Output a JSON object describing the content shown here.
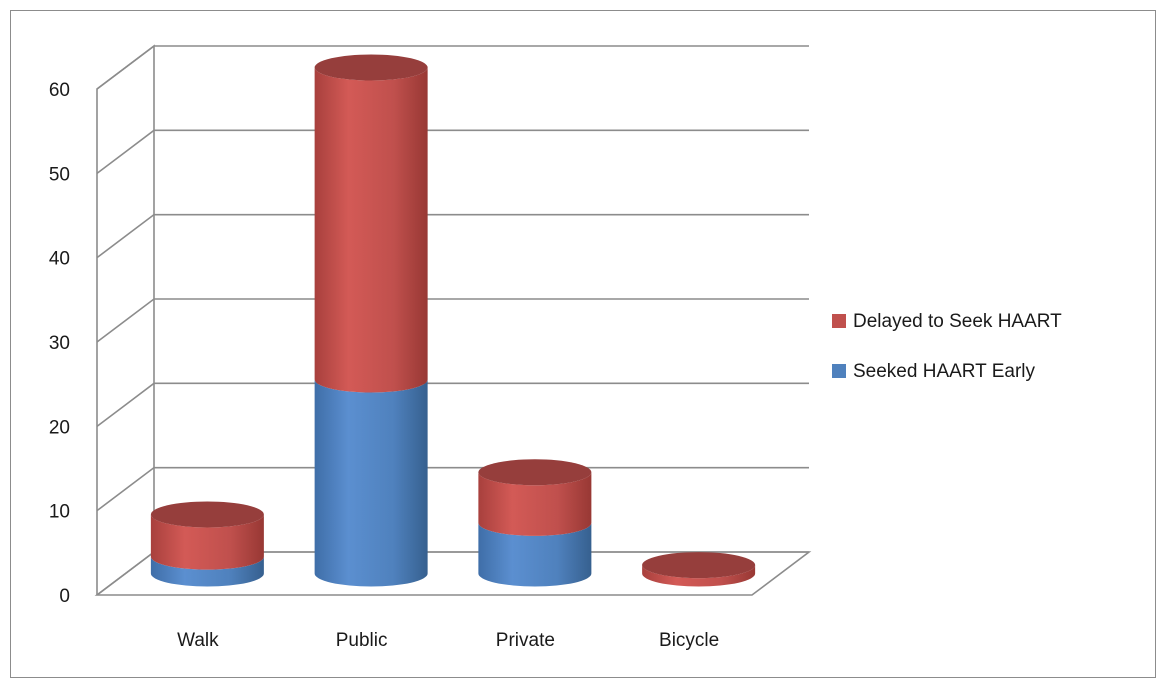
{
  "chart_data": {
    "type": "bar",
    "stacked": true,
    "style": "3d-cylinder",
    "title": "",
    "xlabel": "",
    "ylabel": "",
    "categories": [
      "Walk",
      "Public",
      "Private",
      "Bicycle"
    ],
    "series": [
      {
        "name": "Seeked HAART Early",
        "values": [
          2,
          23,
          6,
          0
        ],
        "color": "#4F81BD"
      },
      {
        "name": "Delayed to Seek HAART",
        "values": [
          5,
          37,
          6,
          1
        ],
        "color": "#C0504D"
      }
    ],
    "ylim": [
      0,
      60
    ],
    "yticks": [
      0,
      10,
      20,
      30,
      40,
      50,
      60
    ],
    "ytick_labels": [
      "0",
      "10",
      "20",
      "30",
      "40",
      "50",
      "60"
    ],
    "grid": true,
    "legend": "right"
  }
}
